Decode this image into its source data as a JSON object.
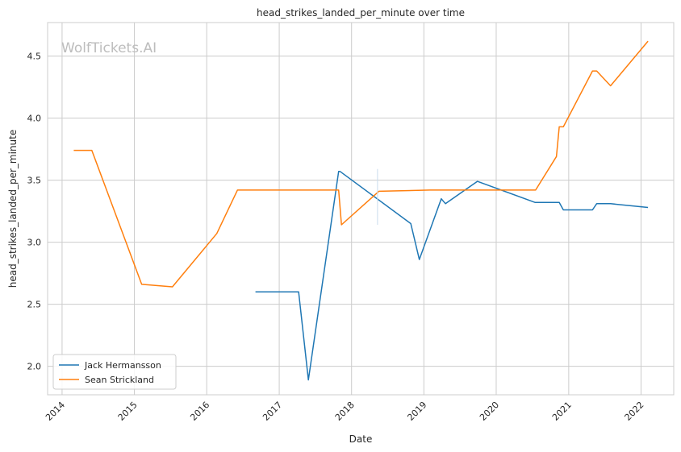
{
  "chart_data": {
    "type": "line",
    "title": "head_strikes_landed_per_minute over time",
    "xlabel": "Date",
    "ylabel": "head_strikes_landed_per_minute",
    "watermark": "WolfTickets.AI",
    "xlim": [
      "2013-10-20",
      "2022-06-15"
    ],
    "ylim": [
      1.77,
      4.77
    ],
    "x_ticks": [
      "2014",
      "2015",
      "2016",
      "2017",
      "2018",
      "2019",
      "2020",
      "2021",
      "2022"
    ],
    "y_ticks": [
      "2.0",
      "2.5",
      "3.0",
      "3.5",
      "4.0",
      "4.5"
    ],
    "grid": true,
    "legend_position": "lower-left",
    "series": [
      {
        "name": "Jack Hermansson",
        "color": "#1f77b4",
        "points": [
          [
            "2016-09-03",
            2.6
          ],
          [
            "2017-04-09",
            2.6
          ],
          [
            "2017-05-28",
            1.89
          ],
          [
            "2017-10-28",
            3.57
          ],
          [
            "2017-11-04",
            3.57
          ],
          [
            "2018-10-27",
            3.15
          ],
          [
            "2018-12-09",
            2.86
          ],
          [
            "2019-03-30",
            3.35
          ],
          [
            "2019-04-20",
            3.31
          ],
          [
            "2019-09-28",
            3.49
          ],
          [
            "2020-07-16",
            3.32
          ],
          [
            "2020-11-14",
            3.32
          ],
          [
            "2020-12-05",
            3.26
          ],
          [
            "2021-05-01",
            3.26
          ],
          [
            "2021-05-22",
            3.31
          ],
          [
            "2021-07-31",
            3.31
          ],
          [
            "2022-02-05",
            3.28
          ]
        ]
      },
      {
        "name": "Sean Strickland",
        "color": "#ff7f0e",
        "points": [
          [
            "2014-03-01",
            3.74
          ],
          [
            "2014-05-31",
            3.74
          ],
          [
            "2015-02-07",
            2.66
          ],
          [
            "2015-07-12",
            2.64
          ],
          [
            "2016-02-21",
            3.07
          ],
          [
            "2016-06-04",
            3.42
          ],
          [
            "2017-03-01",
            3.42
          ],
          [
            "2017-04-15",
            3.42
          ],
          [
            "2017-10-28",
            3.42
          ],
          [
            "2017-11-11",
            3.14
          ],
          [
            "2018-05-19",
            3.41
          ],
          [
            "2019-02-01",
            3.42
          ],
          [
            "2020-07-18",
            3.42
          ],
          [
            "2020-10-31",
            3.69
          ],
          [
            "2020-11-14",
            3.93
          ],
          [
            "2020-12-05",
            3.93
          ],
          [
            "2021-05-01",
            4.38
          ],
          [
            "2021-05-22",
            4.38
          ],
          [
            "2021-07-31",
            4.26
          ],
          [
            "2022-02-05",
            4.62
          ]
        ]
      }
    ],
    "annotation_segment": {
      "date": "2018-05-12",
      "y_range": [
        3.14,
        3.59
      ],
      "color": "#c9dced"
    }
  }
}
